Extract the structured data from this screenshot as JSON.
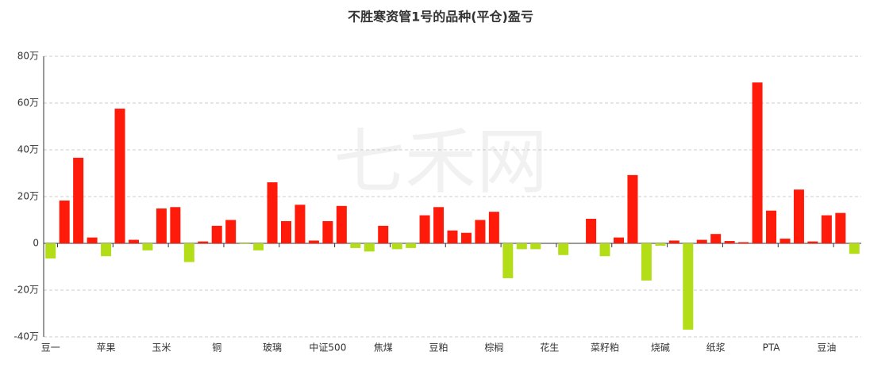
{
  "chart_data": {
    "type": "bar",
    "title": "不胜寒资管1号的品种(平仓)盈亏",
    "watermark": "七禾网",
    "categories": [
      "豆一",
      null,
      null,
      null,
      "苹果",
      null,
      null,
      null,
      "玉米",
      null,
      null,
      null,
      "铜",
      null,
      null,
      null,
      "玻璃",
      null,
      null,
      null,
      "中证500",
      null,
      null,
      null,
      "焦煤",
      null,
      null,
      null,
      "豆粕",
      null,
      null,
      null,
      "棕榈",
      null,
      null,
      null,
      "花生",
      null,
      null,
      null,
      "菜籽粕",
      null,
      null,
      null,
      "烧碱",
      null,
      null,
      null,
      "纸浆",
      null,
      null,
      null,
      "PTA",
      null,
      null,
      null,
      "豆油",
      null,
      null
    ],
    "values": [
      -6.5,
      18.3,
      36.6,
      2.5,
      -5.5,
      57.6,
      1.5,
      -3,
      14.9,
      15.5,
      -8,
      0.8,
      7.5,
      10,
      -0.3,
      -3,
      26.1,
      9.5,
      16.5,
      1.2,
      9.5,
      16,
      -2,
      -3.5,
      7.5,
      -2.5,
      -2,
      12,
      15.5,
      5.5,
      4.5,
      10,
      13.5,
      -14.9,
      -2.5,
      -2.5,
      0,
      -5,
      0,
      10.5,
      -5.5,
      2.5,
      29.2,
      -15.9,
      -1,
      1.2,
      -36.9,
      1.5,
      4,
      1,
      0.5,
      68.8,
      14,
      2,
      23,
      0.8,
      12,
      13,
      -4.5
    ],
    "positive_color": "#ff1a0a",
    "negative_color": "#b3de17",
    "ylim": [
      -40,
      80
    ],
    "yticks": [
      {
        "value": -40,
        "label": "-40万"
      },
      {
        "value": -20,
        "label": "-20万"
      },
      {
        "value": 0,
        "label": "0"
      },
      {
        "value": 20,
        "label": "20万"
      },
      {
        "value": 40,
        "label": "40万"
      },
      {
        "value": 60,
        "label": "60万"
      },
      {
        "value": 80,
        "label": "80万"
      }
    ],
    "grid": true
  }
}
